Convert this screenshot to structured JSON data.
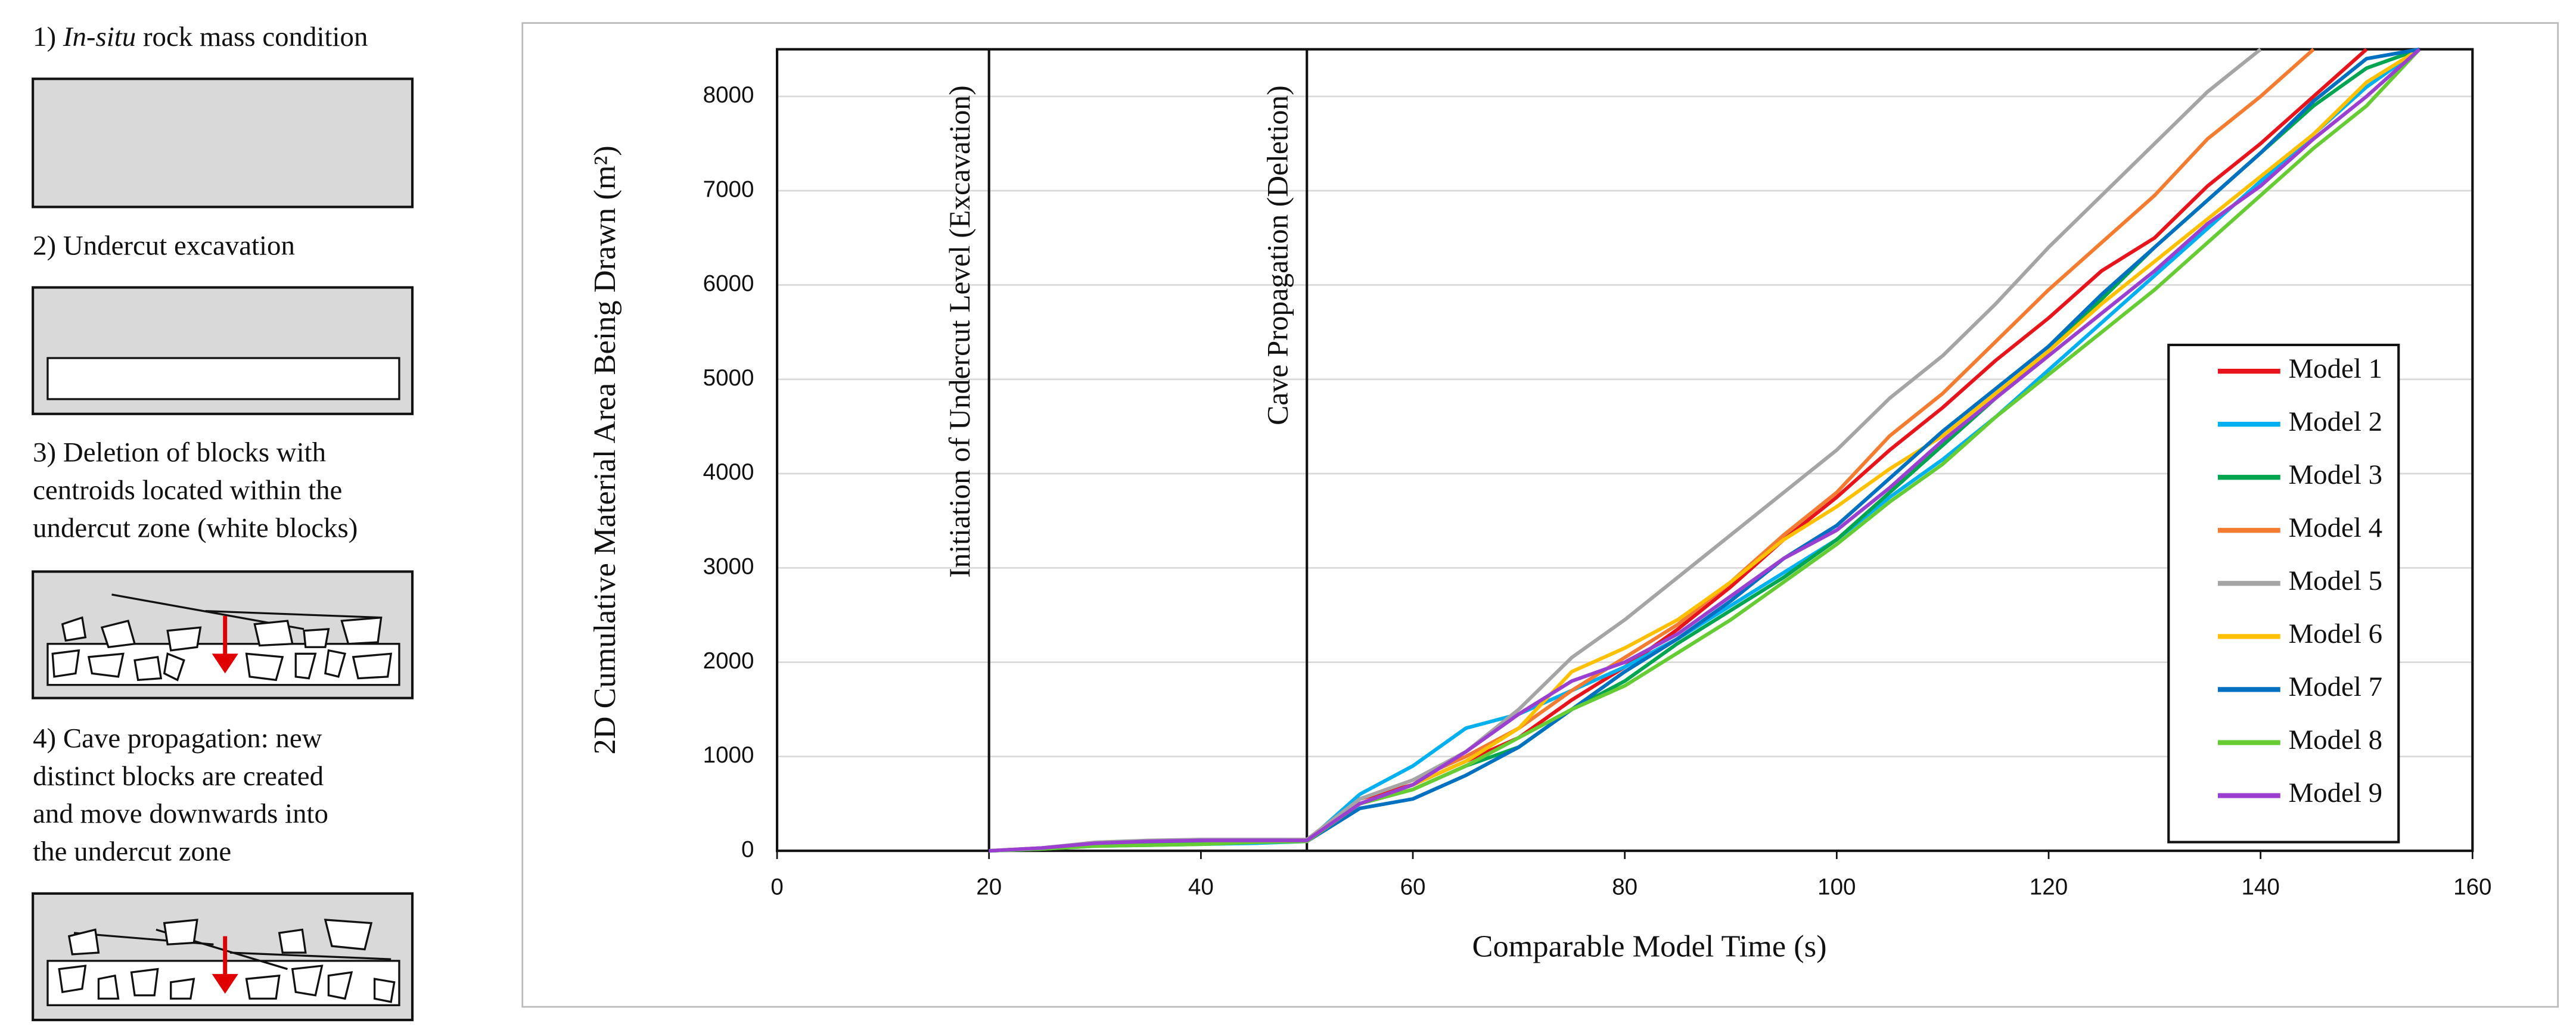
{
  "panel": {
    "steps": [
      {
        "number": "1)",
        "italic": "In-situ",
        "lines": [
          "rock mass condition"
        ]
      },
      {
        "number": "2)",
        "lines": [
          "Undercut excavation"
        ]
      },
      {
        "number": "3)",
        "lines": [
          "Deletion of blocks with",
          "centroids located within the",
          "undercut zone (white blocks)"
        ]
      },
      {
        "number": "4)",
        "lines": [
          "Cave propagation: new",
          "distinct blocks are created",
          "and move downwards into",
          "the undercut zone"
        ]
      }
    ]
  },
  "chart_data": {
    "type": "line",
    "xlabel": "Comparable Model Time (s)",
    "ylabel": "2D Cumulative Material Area Being Drawn (m²)",
    "x": [
      20,
      25,
      30,
      35,
      40,
      45,
      50,
      55,
      60,
      65,
      70,
      75,
      80,
      85,
      90,
      95,
      100,
      105,
      110,
      115,
      120,
      125,
      130,
      135,
      140,
      145,
      150,
      155
    ],
    "series": [
      {
        "name": "Model 1",
        "color": "#e8141c",
        "values": [
          0,
          30,
          80,
          100,
          110,
          110,
          110,
          550,
          700,
          950,
          1200,
          1600,
          1950,
          2350,
          2800,
          3300,
          3750,
          4250,
          4700,
          5200,
          5650,
          6150,
          6500,
          7050,
          7500,
          8000,
          8500,
          null
        ]
      },
      {
        "name": "Model 2",
        "color": "#00b0f0",
        "values": [
          0,
          20,
          50,
          60,
          70,
          80,
          100,
          600,
          900,
          1300,
          1450,
          1700,
          1950,
          2250,
          2600,
          2950,
          3300,
          3750,
          4150,
          4600,
          5100,
          5600,
          6100,
          6600,
          7100,
          7600,
          8100,
          8500
        ]
      },
      {
        "name": "Model 3",
        "color": "#00a550",
        "values": [
          0,
          25,
          70,
          90,
          100,
          105,
          110,
          500,
          650,
          900,
          1100,
          1500,
          1800,
          2200,
          2550,
          2900,
          3300,
          3800,
          4300,
          4800,
          5300,
          5850,
          6400,
          6900,
          7400,
          7900,
          8300,
          8500
        ]
      },
      {
        "name": "Model 4",
        "color": "#f47c30",
        "values": [
          0,
          30,
          80,
          100,
          110,
          110,
          110,
          550,
          750,
          1000,
          1300,
          1700,
          2050,
          2400,
          2850,
          3350,
          3800,
          4400,
          4850,
          5400,
          5950,
          6450,
          6950,
          7550,
          8000,
          8500,
          null,
          null
        ]
      },
      {
        "name": "Model 5",
        "color": "#a5a5a5",
        "values": [
          0,
          30,
          90,
          110,
          120,
          120,
          120,
          550,
          750,
          1050,
          1500,
          2050,
          2450,
          2900,
          3350,
          3800,
          4250,
          4800,
          5250,
          5800,
          6400,
          6950,
          7500,
          8050,
          8500,
          null,
          null,
          null
        ]
      },
      {
        "name": "Model 6",
        "color": "#ffc000",
        "values": [
          0,
          25,
          70,
          90,
          100,
          105,
          110,
          500,
          700,
          950,
          1300,
          1900,
          2150,
          2450,
          2850,
          3300,
          3650,
          4050,
          4400,
          4850,
          5300,
          5800,
          6250,
          6700,
          7150,
          7600,
          8150,
          8500
        ]
      },
      {
        "name": "Model 7",
        "color": "#0070c0",
        "values": [
          0,
          20,
          60,
          80,
          90,
          100,
          100,
          450,
          550,
          800,
          1100,
          1500,
          1900,
          2250,
          2650,
          3100,
          3450,
          3950,
          4450,
          4900,
          5350,
          5900,
          6400,
          6900,
          7400,
          7950,
          8400,
          8500
        ]
      },
      {
        "name": "Model 8",
        "color": "#66cc33",
        "values": [
          0,
          20,
          50,
          60,
          70,
          90,
          100,
          500,
          650,
          900,
          1200,
          1500,
          1750,
          2100,
          2450,
          2850,
          3250,
          3700,
          4100,
          4600,
          5050,
          5500,
          5950,
          6450,
          6950,
          7450,
          7900,
          8500
        ]
      },
      {
        "name": "Model 9",
        "color": "#9b3fd1",
        "values": [
          0,
          30,
          80,
          100,
          110,
          110,
          110,
          500,
          700,
          1050,
          1450,
          1800,
          2000,
          2300,
          2700,
          3100,
          3400,
          3850,
          4350,
          4800,
          5250,
          5700,
          6150,
          6650,
          7050,
          7550,
          8000,
          8500
        ]
      }
    ],
    "xlim": [
      0,
      160
    ],
    "xticks": [
      0,
      20,
      40,
      60,
      80,
      100,
      120,
      140,
      160
    ],
    "ylim": [
      0,
      8500
    ],
    "yticks": [
      0,
      1000,
      2000,
      3000,
      4000,
      5000,
      6000,
      7000,
      8000
    ],
    "grid": true,
    "legend": "right",
    "annotations": [
      {
        "x": 20,
        "text": "Initiation of Undercut Level (Excavation)"
      },
      {
        "x": 50,
        "text": "Cave Propagation (Deletion)"
      }
    ]
  }
}
